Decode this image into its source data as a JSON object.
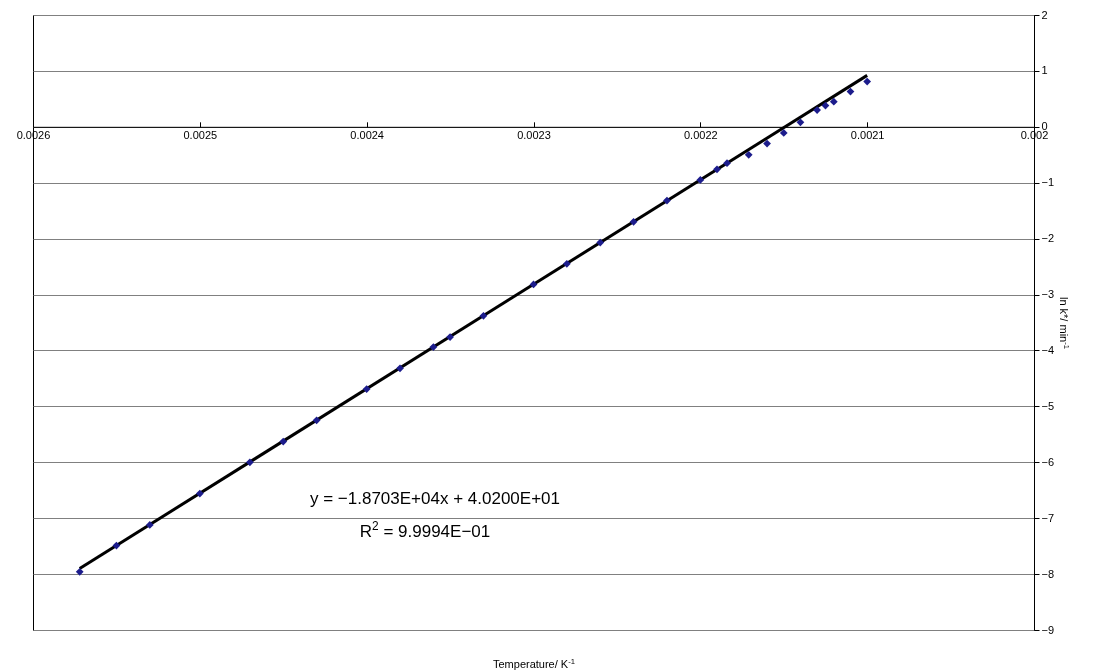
{
  "chart_data": {
    "type": "scatter",
    "xlabel": "Temperature/ K$^{-1}$",
    "ylabel": "ln k*/ min$^{-1}$",
    "xlim": [
      0.0026,
      0.002
    ],
    "xticks": [
      0.0026,
      0.0025,
      0.0024,
      0.0023,
      0.0022,
      0.0021,
      0.002
    ],
    "ylim": [
      -9,
      2
    ],
    "yticks": [
      -9,
      -8,
      -7,
      -6,
      -5,
      -4,
      -3,
      -2,
      -1,
      0,
      1,
      2
    ],
    "grid": "y",
    "annotations": [
      "y = −1.8703E+04x + 4.0200E+01",
      "R$^{2}$ = 9.9994E−01"
    ],
    "series": [
      {
        "marker": "diamond",
        "color": "#1c1c8c",
        "x": [
          0.002572,
          0.00255,
          0.00253,
          0.0025,
          0.00247,
          0.00245,
          0.00243,
          0.0024,
          0.00238,
          0.00236,
          0.00235,
          0.00233,
          0.0023,
          0.00228,
          0.00226,
          0.00224,
          0.00222,
          0.0022,
          0.00219,
          0.002184,
          0.002171,
          0.00216,
          0.00215,
          0.00214,
          0.00213,
          0.002125,
          0.00212,
          0.00211,
          0.0021
        ],
        "values": [
          -7.96,
          -7.49,
          -7.12,
          -6.56,
          -6.0,
          -5.63,
          -5.25,
          -4.69,
          -4.32,
          -3.94,
          -3.76,
          -3.38,
          -2.82,
          -2.45,
          -2.07,
          -1.7,
          -1.32,
          -0.95,
          -0.76,
          -0.65,
          -0.5,
          -0.3,
          -0.11,
          0.08,
          0.3,
          0.38,
          0.45,
          0.63,
          0.81
        ]
      },
      {
        "type": "line",
        "color": "#000000",
        "line_style": "solid",
        "x": [
          0.002572,
          0.0021
        ],
        "values": [
          -7.9,
          0.92
        ]
      }
    ]
  }
}
